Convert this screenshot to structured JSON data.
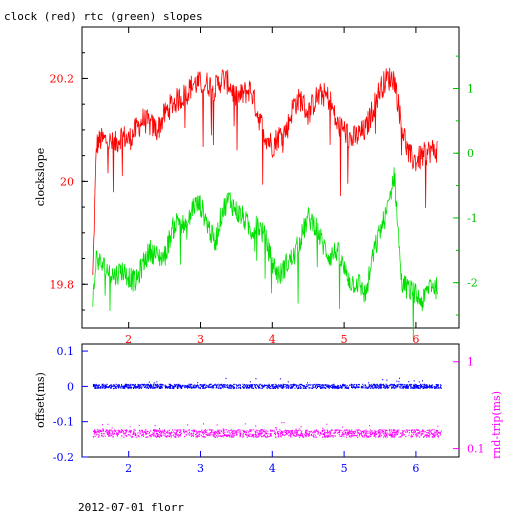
{
  "title": "clock (red) rtc (green) slopes",
  "footer": "2012-07-01 florr",
  "colors": {
    "clock": "#ff0000",
    "rtc": "#00e000",
    "offset": "#0000ff",
    "rndtrip": "#ff00ff",
    "axis": "#000000"
  },
  "chart_data": [
    {
      "type": "line",
      "title": "clock (red) rtc (green) slopes",
      "ylabel": "clockslope",
      "xlim": [
        1.35,
        6.6
      ],
      "ylim": [
        19.715,
        20.3
      ],
      "y2lim": [
        -2.7,
        1.95
      ],
      "xticks": [
        2,
        3,
        4,
        5,
        6
      ],
      "yticks": [
        19.8,
        20,
        20.2
      ],
      "y2ticks": [
        -2,
        -1,
        0,
        1
      ],
      "series": [
        {
          "name": "clock",
          "axis": "left",
          "x": [
            1.5,
            1.55,
            1.6,
            1.7,
            1.8,
            1.9,
            2.0,
            2.1,
            2.2,
            2.3,
            2.4,
            2.5,
            2.6,
            2.7,
            2.8,
            2.9,
            3.0,
            3.1,
            3.2,
            3.3,
            3.4,
            3.5,
            3.6,
            3.7,
            3.8,
            3.9,
            4.0,
            4.1,
            4.2,
            4.3,
            4.4,
            4.5,
            4.6,
            4.7,
            4.8,
            4.9,
            5.0,
            5.1,
            5.2,
            5.3,
            5.4,
            5.5,
            5.6,
            5.7,
            5.8,
            5.9,
            6.0,
            6.1,
            6.2,
            6.3
          ],
          "values": [
            19.81,
            20.07,
            20.08,
            20.08,
            20.07,
            20.09,
            20.08,
            20.1,
            20.12,
            20.11,
            20.1,
            20.13,
            20.15,
            20.16,
            20.17,
            20.19,
            20.19,
            20.19,
            20.18,
            20.2,
            20.19,
            20.16,
            20.17,
            20.18,
            20.13,
            20.09,
            20.07,
            20.09,
            20.1,
            20.15,
            20.16,
            20.13,
            20.16,
            20.17,
            20.16,
            20.11,
            20.1,
            20.08,
            20.09,
            20.1,
            20.14,
            20.18,
            20.2,
            20.2,
            20.11,
            20.05,
            20.04,
            20.05,
            20.06,
            20.06
          ]
        },
        {
          "name": "rtc",
          "axis": "right",
          "x": [
            1.5,
            1.55,
            1.6,
            1.7,
            1.8,
            1.9,
            2.0,
            2.1,
            2.2,
            2.3,
            2.4,
            2.5,
            2.6,
            2.7,
            2.8,
            2.9,
            3.0,
            3.1,
            3.2,
            3.3,
            3.4,
            3.5,
            3.6,
            3.7,
            3.8,
            3.9,
            4.0,
            4.1,
            4.2,
            4.3,
            4.4,
            4.5,
            4.6,
            4.7,
            4.8,
            4.9,
            5.0,
            5.1,
            5.2,
            5.3,
            5.4,
            5.5,
            5.6,
            5.7,
            5.8,
            5.9,
            6.0,
            6.1,
            6.2,
            6.3
          ],
          "values": [
            -2.3,
            -1.6,
            -1.7,
            -1.8,
            -1.9,
            -1.8,
            -1.9,
            -2.0,
            -1.7,
            -1.5,
            -1.6,
            -1.6,
            -1.2,
            -1.0,
            -1.2,
            -0.8,
            -0.8,
            -1.1,
            -1.4,
            -0.9,
            -0.7,
            -0.9,
            -1.0,
            -1.2,
            -1.1,
            -1.3,
            -1.7,
            -1.9,
            -1.7,
            -1.6,
            -1.3,
            -1.0,
            -1.1,
            -1.4,
            -1.6,
            -1.5,
            -1.8,
            -2.0,
            -2.0,
            -2.2,
            -1.6,
            -1.2,
            -0.9,
            -0.3,
            -2.0,
            -2.1,
            -2.2,
            -2.3,
            -2.0,
            -2.1
          ]
        }
      ]
    },
    {
      "type": "scatter",
      "ylabel": "offset(ms)",
      "y2label": "rnd-trip(ms)",
      "xlim": [
        1.35,
        6.6
      ],
      "ylim": [
        -0.2,
        0.12
      ],
      "y2_scale": "log",
      "y2lim": [
        0.08,
        1.6
      ],
      "xticks": [
        2,
        3,
        4,
        5,
        6
      ],
      "yticks": [
        -0.2,
        -0.1,
        0,
        0.1
      ],
      "y2ticks": [
        0.1,
        1
      ],
      "series": [
        {
          "name": "offset",
          "axis": "left",
          "x_range": [
            1.5,
            6.35
          ],
          "center": 0.0,
          "spread": 0.006
        },
        {
          "name": "rnd-trip",
          "axis": "right",
          "x_range": [
            1.5,
            6.35
          ],
          "center": 0.15,
          "spread": 0.015
        }
      ]
    }
  ]
}
